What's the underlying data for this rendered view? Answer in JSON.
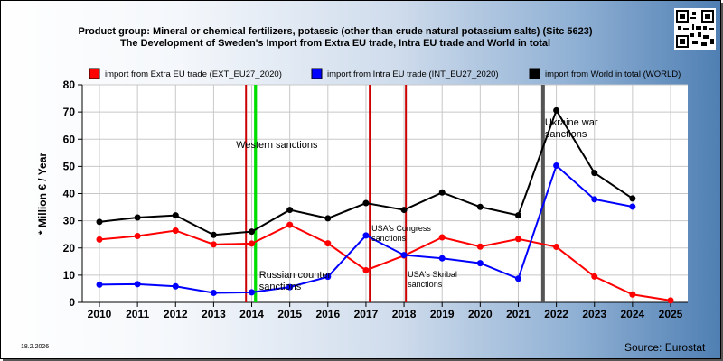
{
  "header": {
    "title": "Product group: Mineral or chemical fertilizers, potassic (other than crude natural potassium salts) (Sitc 5623)",
    "subtitle": "The Development of Sweden's Import from Extra EU trade, Intra EU trade and World in total"
  },
  "footer": {
    "date": "18.2.2026",
    "source": "Source: Eurostat"
  },
  "colors": {
    "extra_eu": "#ff0000",
    "intra_eu": "#0000ff",
    "world": "#000000",
    "sanction_red": "#cc0000",
    "sanction_green": "#00dd00",
    "sanction_gray": "#555555"
  },
  "chart_data": {
    "type": "line",
    "ylabel": "* Million € / Year",
    "xlabel": "",
    "ylim": [
      0,
      80
    ],
    "yticks": [
      0,
      10,
      20,
      30,
      40,
      50,
      60,
      70,
      80
    ],
    "x": [
      2010,
      2011,
      2012,
      2013,
      2014,
      2015,
      2016,
      2017,
      2018,
      2019,
      2020,
      2021,
      2022,
      2023,
      2024,
      2025
    ],
    "grid": true,
    "legend_position": "top",
    "series": [
      {
        "key": "extra_eu",
        "name": "import from Extra EU trade (EXT_EU27_2020)",
        "values": [
          23.1,
          24.4,
          26.4,
          21.3,
          21.6,
          28.5,
          21.7,
          11.8,
          17.2,
          23.9,
          20.5,
          23.3,
          20.4,
          9.5,
          2.9,
          0.7
        ]
      },
      {
        "key": "intra_eu",
        "name": "import from Intra EU trade (INT_EU27_2020)",
        "values": [
          6.5,
          6.7,
          5.9,
          3.5,
          3.7,
          5.6,
          9.4,
          24.6,
          17.4,
          16.2,
          14.4,
          8.7,
          50.3,
          37.9,
          35.2,
          null
        ]
      },
      {
        "key": "world",
        "name": "import from World in total (WORLD)",
        "values": [
          29.6,
          31.2,
          32.0,
          24.8,
          26.0,
          34.0,
          30.9,
          36.5,
          34.0,
          40.4,
          35.1,
          32.0,
          70.6,
          47.6,
          38.2,
          null
        ]
      }
    ],
    "events": [
      {
        "label": "Western sanctions",
        "x": 2013.85,
        "color": "sanction_red"
      },
      {
        "label": "",
        "x": 2014.1,
        "color": "sanction_green"
      },
      {
        "label": "Russian counter sanctions",
        "x": 2014.1,
        "color": "sanction_green"
      },
      {
        "label": "USA's Congress sanctions",
        "x": 2017.1,
        "color": "sanction_red"
      },
      {
        "label": "USA's Skribal sanctions",
        "x": 2018.05,
        "color": "sanction_red"
      },
      {
        "label": "Ukraine war sanctions",
        "x": 2021.65,
        "color": "sanction_gray"
      }
    ]
  }
}
